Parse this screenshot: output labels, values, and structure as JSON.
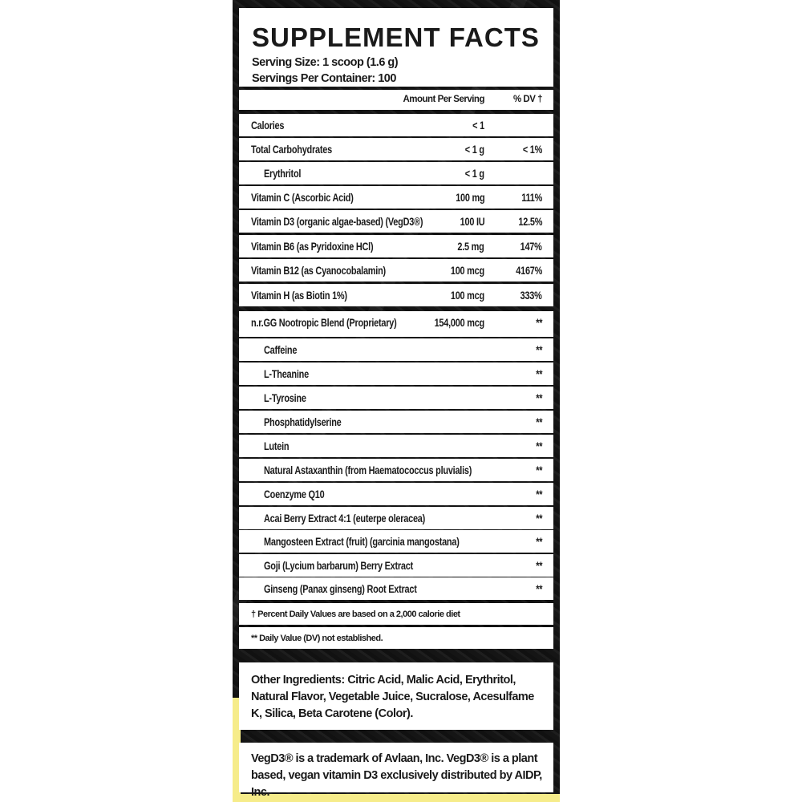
{
  "header": {
    "title": "SUPPLEMENT FACTS",
    "serving_size": "Serving Size: 1 scoop (1.6 g)",
    "servings_per_container": "Servings Per Container: 100"
  },
  "columns": {
    "amount": "Amount Per Serving",
    "dv": "% DV †"
  },
  "rows": [
    {
      "name": "Calories",
      "amount": "< 1",
      "dv": "",
      "sub": false
    },
    {
      "name": "Total Carbohydrates",
      "amount": "< 1 g",
      "dv": "< 1%",
      "sub": false
    },
    {
      "name": "Erythritol",
      "amount": "< 1 g",
      "dv": "",
      "sub": true
    },
    {
      "name": "Vitamin C (Ascorbic Acid)",
      "amount": "100 mg",
      "dv": "111%",
      "sub": false
    },
    {
      "name": "Vitamin D3 (organic algae-based) (VegD3®)",
      "amount": "100 IU",
      "dv": "12.5%",
      "sub": false
    },
    {
      "name": "Vitamin B6 (as Pyridoxine HCl)",
      "amount": "2.5 mg",
      "dv": "147%",
      "sub": false
    },
    {
      "name": "Vitamin B12 (as Cyanocobalamin)",
      "amount": "100 mcg",
      "dv": "4167%",
      "sub": false
    },
    {
      "name": "Vitamin H (as Biotin 1%)",
      "amount": "100 mcg",
      "dv": "333%",
      "sub": false
    },
    {
      "name": "n.r.GG Nootropic Blend (Proprietary)",
      "amount": "154,000 mcg",
      "dv": "**",
      "sub": false
    },
    {
      "name": "Caffeine",
      "amount": "",
      "dv": "**",
      "sub": true
    },
    {
      "name": "L-Theanine",
      "amount": "",
      "dv": "**",
      "sub": true
    },
    {
      "name": "L-Tyrosine",
      "amount": "",
      "dv": "**",
      "sub": true
    },
    {
      "name": "Phosphatidylserine",
      "amount": "",
      "dv": "**",
      "sub": true
    },
    {
      "name": "Lutein",
      "amount": "",
      "dv": "**",
      "sub": true
    },
    {
      "name": "Natural Astaxanthin (from Haematococcus pluvialis)",
      "amount": "",
      "dv": "**",
      "sub": true
    },
    {
      "name": "Coenzyme Q10",
      "amount": "",
      "dv": "**",
      "sub": true
    },
    {
      "name": "Acai Berry Extract 4:1 (euterpe oleracea)",
      "amount": "",
      "dv": "**",
      "sub": true
    },
    {
      "name": "Mangosteen Extract (fruit) (garcinia mangostana)",
      "amount": "",
      "dv": "**",
      "sub": true
    },
    {
      "name": "Goji (Lycium barbarum) Berry Extract",
      "amount": "",
      "dv": "**",
      "sub": true
    },
    {
      "name": "Ginseng (Panax ginseng) Root Extract",
      "amount": "",
      "dv": "**",
      "sub": true
    }
  ],
  "footnotes": {
    "dv_basis": "† Percent Daily Values are based on a 2,000 calorie diet",
    "not_established": "** Daily Value (DV) not established."
  },
  "other_ingredients": "Other Ingredients: Citric Acid, Malic Acid, Erythritol, Natural Flavor, Vegetable Juice, Sucralose, Acesulfame K, Silica, Beta Carotene (Color).",
  "trademark_note": "VegD3® is a trademark of Avlaan, Inc. VegD3® is a plant based, vegan vitamin D3 exclusively distributed by AIDP, Inc.",
  "colors": {
    "panel_bg": "#151515",
    "box_bg": "#ffffff",
    "accent_yellow": "#f6ec8a",
    "text": "#1a1a1a"
  }
}
